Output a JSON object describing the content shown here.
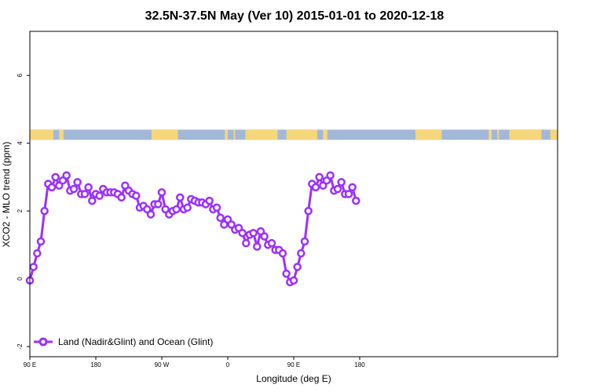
{
  "chart_data": {
    "type": "line",
    "title": "32.5N-37.5N May (Ver 10)   2015-01-01 to 2020-12-18",
    "xlabel": "Longitude (deg E)",
    "ylabel": "XCO2 - MLO trend (ppm)",
    "xlim": [
      90,
      450
    ],
    "ylim": [
      -2.3,
      7.3
    ],
    "xticks": [
      {
        "value": 90,
        "label": "90 E"
      },
      {
        "value": 180,
        "label": "180"
      },
      {
        "value": 270,
        "label": "90 W"
      },
      {
        "value": 360,
        "label": "0"
      },
      {
        "value": 450,
        "label": "90 E"
      },
      {
        "value": 540,
        "label": "180"
      }
    ],
    "yticks": [
      {
        "value": -2,
        "label": "-2"
      },
      {
        "value": 0,
        "label": "0"
      },
      {
        "value": 2,
        "label": "2"
      },
      {
        "value": 4,
        "label": "4"
      },
      {
        "value": 6,
        "label": "6"
      }
    ],
    "x_range": [
      90,
      540
    ],
    "x_step": 5,
    "series": [
      {
        "name": "Land (Nadir&Glint) and Ocean (Glint)",
        "color": "#9b30ff",
        "values": [
          -0.05,
          0.35,
          0.75,
          1.1,
          2.0,
          2.8,
          2.7,
          3.0,
          2.75,
          2.9,
          3.05,
          2.6,
          2.65,
          2.85,
          2.5,
          2.5,
          2.7,
          2.3,
          2.5,
          2.45,
          2.65,
          2.55,
          2.55,
          2.55,
          2.5,
          2.4,
          2.75,
          2.6,
          2.5,
          2.45,
          2.1,
          2.15,
          2.05,
          1.9,
          2.2,
          2.2,
          2.55,
          2.05,
          1.9,
          2.0,
          2.05,
          2.4,
          2.05,
          2.1,
          2.35,
          2.3,
          2.25,
          2.25,
          2.2,
          2.3,
          2.05,
          2.1,
          1.8,
          1.6,
          1.75,
          1.6,
          1.45,
          1.5,
          1.35,
          1.05,
          1.3,
          1.35,
          0.95,
          1.4,
          1.25,
          1.0,
          1.05,
          0.85,
          0.85,
          0.75,
          0.15,
          -0.1,
          -0.05,
          0.35,
          0.75,
          1.1,
          2.0,
          2.8,
          2.7,
          3.0,
          2.75,
          2.9,
          3.05,
          2.6,
          2.65,
          2.85,
          2.5,
          2.5,
          2.7,
          2.3
        ]
      }
    ],
    "surface_strip": {
      "y_range": [
        4.1,
        4.4
      ],
      "land_color": "#f5d67a",
      "ocean_color": "#a2b8d8",
      "land_intervals": [
        [
          90,
          122
        ],
        [
          130,
          136
        ],
        [
          256,
          292
        ],
        [
          356,
          360
        ],
        [
          368,
          370
        ],
        [
          384,
          428
        ],
        [
          440,
          450
        ]
      ]
    },
    "legend_position": "bottom-left",
    "grid": false
  }
}
